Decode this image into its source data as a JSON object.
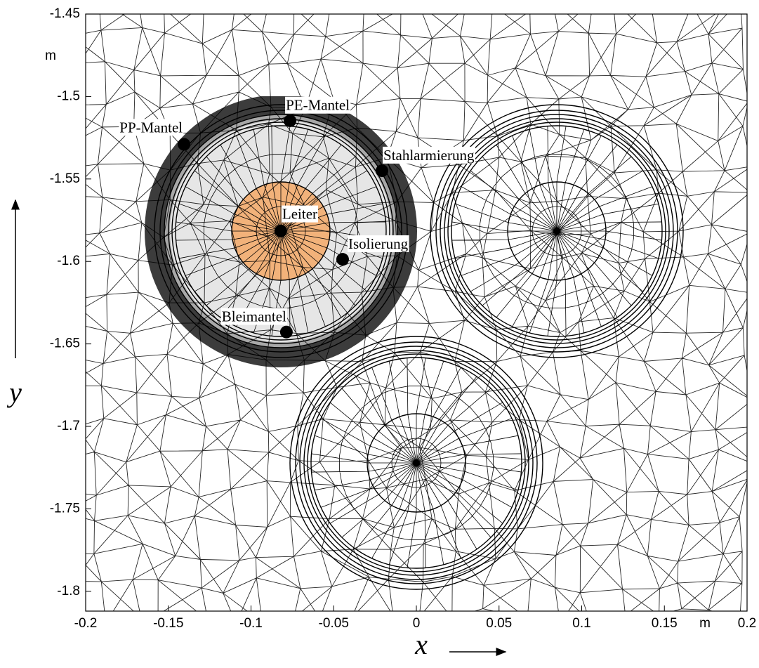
{
  "chart_data": {
    "type": "scatter",
    "x": [
      -0.082,
      -0.1405,
      -0.0764,
      -0.0208,
      -0.0446,
      -0.0786
    ],
    "values": [
      -1.5815,
      -1.529,
      -1.5147,
      -1.545,
      -1.5987,
      -1.6428
    ],
    "point_labels": [
      "Leiter",
      "PP-Mantel",
      "PE-Mantel",
      "Stahlarmierung",
      "Isolierung",
      "Bleimantel"
    ],
    "color": "#000000",
    "xlim": [
      -0.2,
      0.2
    ],
    "ylim": [
      -1.812,
      -1.45
    ],
    "xticks": [
      -0.2,
      -0.15,
      -0.1,
      -0.05,
      0,
      0.05,
      0.1,
      0.15,
      0.2
    ],
    "yticks": [
      -1.45,
      -1.5,
      -1.55,
      -1.6,
      -1.65,
      -1.7,
      -1.75,
      -1.8
    ],
    "xlabel": "x",
    "ylabel": "y",
    "xunit": "m",
    "yunit": "m"
  }
}
